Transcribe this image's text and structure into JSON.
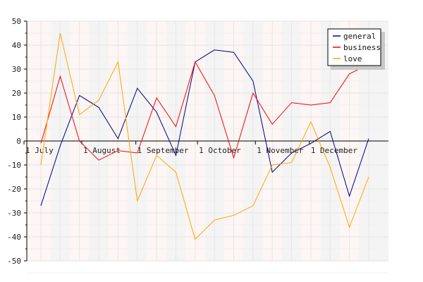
{
  "chart_data": {
    "type": "line",
    "title": "",
    "xlabel": "",
    "ylabel": "",
    "ylim": [
      -50,
      50
    ],
    "y_ticks": [
      -50,
      -40,
      -30,
      -20,
      -10,
      0,
      10,
      20,
      30,
      40,
      50
    ],
    "x_tick_labels": [
      "1 July",
      "1 August",
      "1 September",
      "1 October",
      "1 November",
      "1 December"
    ],
    "grid": true,
    "legend_position": "top-right",
    "series": [
      {
        "name": "general",
        "color": "#000080",
        "values": [
          -27,
          -2,
          19,
          14,
          1,
          22,
          12,
          -6,
          33,
          38,
          37,
          25,
          -13,
          -5,
          -1,
          4,
          -23,
          1
        ]
      },
      {
        "name": "business",
        "color": "#ff0000",
        "values": [
          -1,
          27,
          0,
          -8,
          -4,
          -5,
          18,
          6,
          33,
          19,
          -7,
          20,
          7,
          16,
          15,
          16,
          28,
          32
        ]
      },
      {
        "name": "love",
        "color": "#ffa500",
        "values": [
          -10,
          45,
          11,
          17,
          33,
          -25,
          -6,
          -13,
          -41,
          -33,
          -31,
          -27,
          -10,
          -9,
          8,
          -11,
          -36,
          -15
        ]
      }
    ]
  }
}
